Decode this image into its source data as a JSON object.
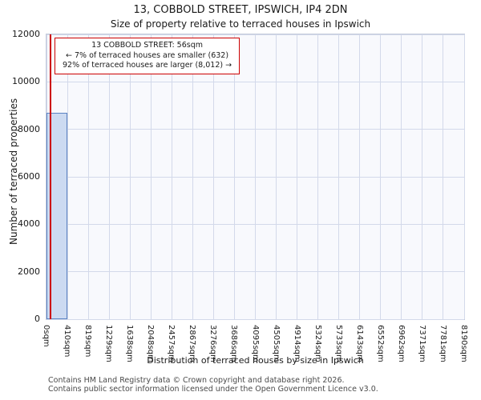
{
  "title": "13, COBBOLD STREET, IPSWICH, IP4 2DN",
  "subtitle": "Size of property relative to terraced houses in Ipswich",
  "annotation": {
    "lines": [
      "13 COBBOLD STREET: 56sqm",
      "← 7% of terraced houses are smaller (632)",
      "92% of terraced houses are larger (8,012) →"
    ]
  },
  "footer": {
    "lines": [
      "Contains HM Land Registry data © Crown copyright and database right 2026.",
      "Contains public sector information licensed under the Open Government Licence v3.0."
    ]
  },
  "chart_data": {
    "type": "bar",
    "title": "13, COBBOLD STREET, IPSWICH, IP4 2DN",
    "subtitle": "Size of property relative to terraced houses in Ipswich",
    "xlabel": "Distribution of terraced houses by size in Ipswich",
    "ylabel": "Number of terraced properties",
    "categories": [
      "0sqm",
      "410sqm",
      "819sqm",
      "1229sqm",
      "1638sqm",
      "2048sqm",
      "2457sqm",
      "2867sqm",
      "3276sqm",
      "3686sqm",
      "4095sqm",
      "4505sqm",
      "4914sqm",
      "5324sqm",
      "5733sqm",
      "6143sqm",
      "6552sqm",
      "6962sqm",
      "7371sqm",
      "7781sqm",
      "8190sqm"
    ],
    "values": [
      8700,
      0,
      0,
      0,
      0,
      0,
      0,
      0,
      0,
      0,
      0,
      0,
      0,
      0,
      0,
      0,
      0,
      0,
      0,
      0
    ],
    "ylim": [
      0,
      12000
    ],
    "yticks": [
      0,
      2000,
      4000,
      6000,
      8000,
      10000,
      12000
    ],
    "x_range_sqm": [
      0,
      8190
    ],
    "marker_value_sqm": 56,
    "smaller_pct": 7,
    "smaller_count": 632,
    "larger_pct": 92,
    "larger_count": 8012,
    "grid": true,
    "legend": "none",
    "colors": {
      "bar_fill": "#ccdaf1",
      "bar_edge": "#5b82c2",
      "marker_line": "#cc0000",
      "grid": "#d3d9ea",
      "plot_bg": "#f8f9fd"
    }
  }
}
